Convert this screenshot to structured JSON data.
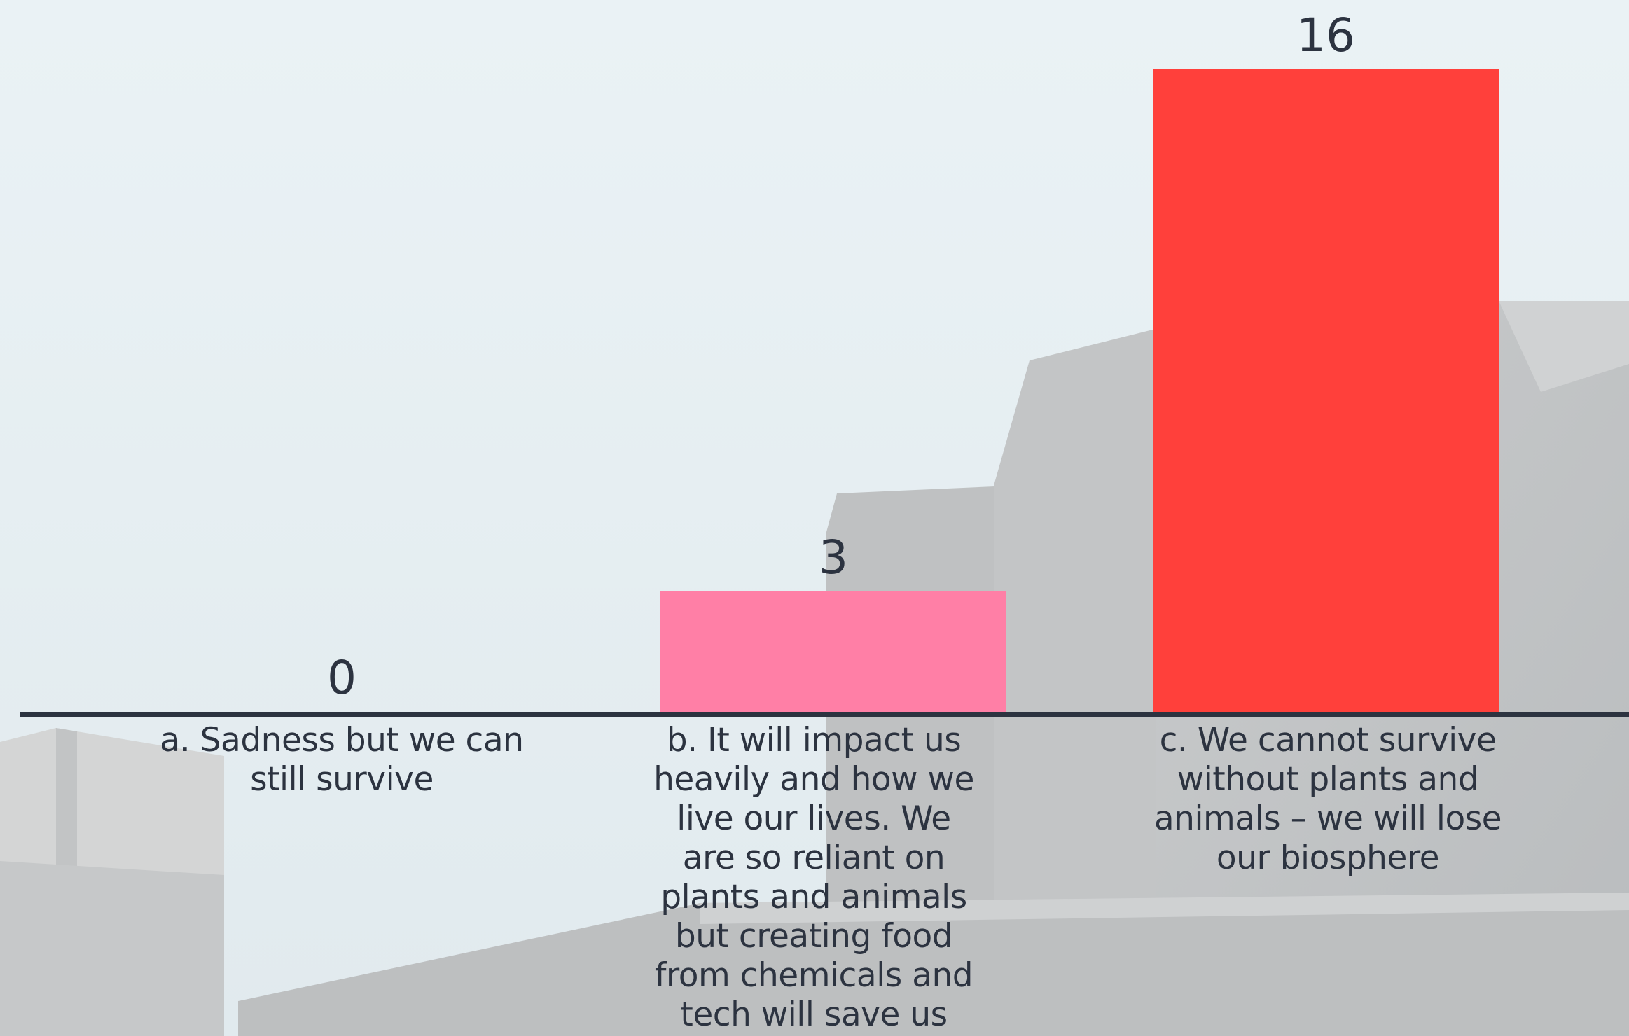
{
  "chart_data": {
    "type": "bar",
    "title": "",
    "xlabel": "",
    "ylabel": "",
    "categories": [
      "a. Sadness but we can still survive",
      "b. It will impact us heavily and how we live our lives. We are so reliant on plants and animals but creating food from chemicals and tech will save us",
      "c. We cannot survive without plants and animals – we will lose our biosphere"
    ],
    "values": [
      0,
      3,
      16
    ],
    "data_labels": [
      "0",
      "3",
      "16"
    ],
    "bar_colors": [
      "#ff7fa6",
      "#ff7fa6",
      "#ff403b"
    ],
    "grid": false,
    "legend": "none"
  },
  "style": {
    "baseline_color": "#2c3340",
    "label_color": "#2c3340",
    "background_color": "#e6eef2",
    "building_color": "#c8cacb"
  }
}
